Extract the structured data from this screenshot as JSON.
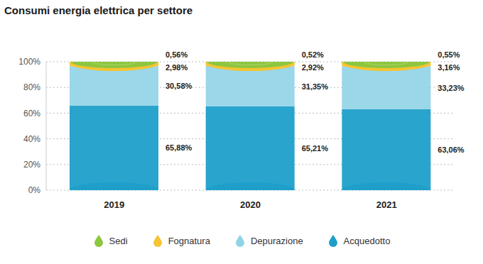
{
  "chart_data": {
    "type": "bar",
    "title": "Consumi energia elettrica per settore",
    "categories": [
      "2019",
      "2020",
      "2021"
    ],
    "series": [
      {
        "name": "Sedi",
        "color": "#8dc63f",
        "values": [
          0.56,
          0.52,
          0.55
        ],
        "value_labels": [
          "0,56%",
          "0,52%",
          "0,55%"
        ]
      },
      {
        "name": "Fognatura",
        "color": "#f5c431",
        "values": [
          2.98,
          2.92,
          3.16
        ],
        "value_labels": [
          "2,98%",
          "2,92%",
          "3,16%"
        ]
      },
      {
        "name": "Depurazione",
        "color": "#8fd3e6",
        "values": [
          30.58,
          31.35,
          33.23
        ],
        "value_labels": [
          "30,58%",
          "31,35%",
          "33,23%"
        ]
      },
      {
        "name": "Acquedotto",
        "color": "#1d9fca",
        "values": [
          65.88,
          65.21,
          63.06
        ],
        "value_labels": [
          "65,88%",
          "65,21%",
          "63,06%"
        ]
      }
    ],
    "stacked": true,
    "data_labels": true,
    "ylim": [
      0,
      100
    ],
    "yticks": [
      {
        "value": 0,
        "label": "0%"
      },
      {
        "value": 20,
        "label": "20%"
      },
      {
        "value": 40,
        "label": "40%"
      },
      {
        "value": 60,
        "label": "60%"
      },
      {
        "value": 80,
        "label": "80%"
      },
      {
        "value": 100,
        "label": "100%"
      }
    ],
    "grid": true,
    "legend": "bottom"
  }
}
